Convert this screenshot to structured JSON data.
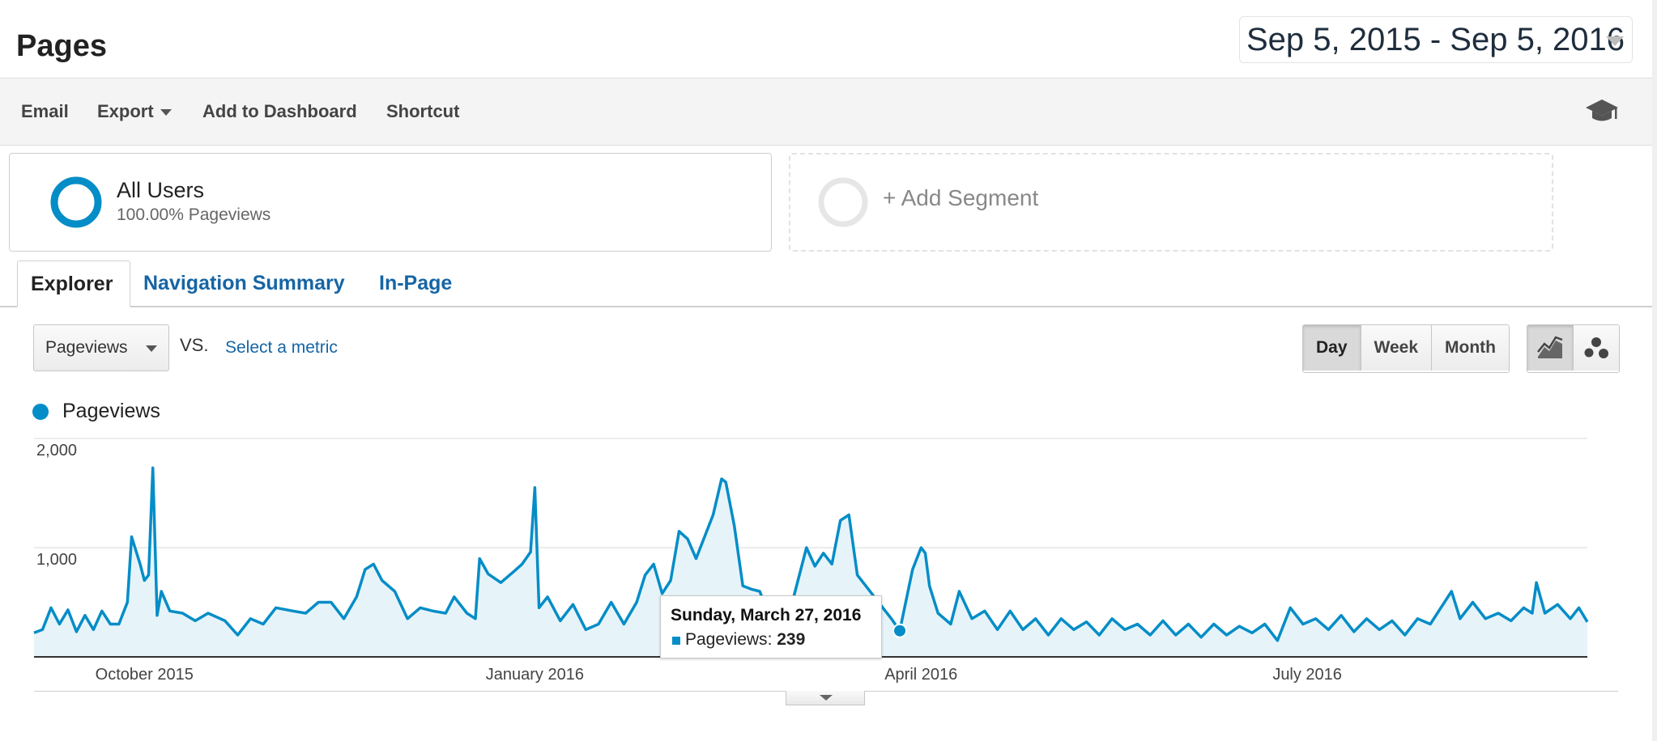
{
  "header": {
    "title": "Pages",
    "date_range": "Sep 5, 2015 - Sep 5, 2016"
  },
  "toolbar": {
    "email_label": "Email",
    "export_label": "Export",
    "add_dashboard_label": "Add to Dashboard",
    "shortcut_label": "Shortcut",
    "help_icon": "graduation-cap-icon"
  },
  "segments": {
    "all_users": {
      "name": "All Users",
      "sub": "100.00% Pageviews"
    },
    "add_segment_label": "+ Add Segment"
  },
  "tabs": [
    {
      "label": "Explorer",
      "active": true
    },
    {
      "label": "Navigation Summary",
      "active": false
    },
    {
      "label": "In-Page",
      "active": false
    }
  ],
  "controls": {
    "metric_value": "Pageviews",
    "vs_label": "VS.",
    "select_metric_label": "Select a metric",
    "period_options": [
      {
        "label": "Day",
        "active": true
      },
      {
        "label": "Week",
        "active": false
      },
      {
        "label": "Month",
        "active": false
      }
    ],
    "view_icons": [
      "line-chart-icon",
      "motion-chart-icon"
    ]
  },
  "colors": {
    "series": "#058dc7",
    "fill": "#e6f4fa",
    "link": "#1565a5"
  },
  "chart_data": {
    "type": "area",
    "title": "",
    "xlabel": "",
    "ylabel": "",
    "ylim": [
      0,
      2000
    ],
    "y_ticks": [
      {
        "label": "2,000",
        "value": 2000
      },
      {
        "label": "1,000",
        "value": 1000
      }
    ],
    "x_ticks": [
      {
        "label": "October 2015",
        "date": "2015-10-01"
      },
      {
        "label": "January 2016",
        "date": "2016-01-01"
      },
      {
        "label": "April 2016",
        "date": "2016-04-01"
      },
      {
        "label": "July 2016",
        "date": "2016-07-01"
      }
    ],
    "x_range": [
      "2015-09-05",
      "2016-09-05"
    ],
    "grid": true,
    "legend": "top-left",
    "series": [
      {
        "name": "Pageviews",
        "keypoints": [
          [
            "2015-09-05",
            220
          ],
          [
            "2015-09-07",
            250
          ],
          [
            "2015-09-09",
            450
          ],
          [
            "2015-09-11",
            300
          ],
          [
            "2015-09-13",
            430
          ],
          [
            "2015-09-15",
            230
          ],
          [
            "2015-09-17",
            380
          ],
          [
            "2015-09-19",
            250
          ],
          [
            "2015-09-21",
            420
          ],
          [
            "2015-09-23",
            300
          ],
          [
            "2015-09-25",
            300
          ],
          [
            "2015-09-27",
            500
          ],
          [
            "2015-09-28",
            1100
          ],
          [
            "2015-09-30",
            850
          ],
          [
            "2015-10-01",
            700
          ],
          [
            "2015-10-02",
            750
          ],
          [
            "2015-10-03",
            1730
          ],
          [
            "2015-10-04",
            380
          ],
          [
            "2015-10-05",
            600
          ],
          [
            "2015-10-07",
            420
          ],
          [
            "2015-10-10",
            400
          ],
          [
            "2015-10-13",
            330
          ],
          [
            "2015-10-16",
            400
          ],
          [
            "2015-10-20",
            330
          ],
          [
            "2015-10-23",
            200
          ],
          [
            "2015-10-26",
            350
          ],
          [
            "2015-10-29",
            300
          ],
          [
            "2015-11-01",
            450
          ],
          [
            "2015-11-05",
            420
          ],
          [
            "2015-11-08",
            400
          ],
          [
            "2015-11-11",
            500
          ],
          [
            "2015-11-14",
            500
          ],
          [
            "2015-11-17",
            350
          ],
          [
            "2015-11-20",
            550
          ],
          [
            "2015-11-22",
            800
          ],
          [
            "2015-11-24",
            850
          ],
          [
            "2015-11-26",
            700
          ],
          [
            "2015-11-29",
            600
          ],
          [
            "2015-12-02",
            350
          ],
          [
            "2015-12-05",
            450
          ],
          [
            "2015-12-08",
            420
          ],
          [
            "2015-12-11",
            400
          ],
          [
            "2015-12-13",
            550
          ],
          [
            "2015-12-16",
            400
          ],
          [
            "2015-12-18",
            350
          ],
          [
            "2015-12-19",
            900
          ],
          [
            "2015-12-21",
            760
          ],
          [
            "2015-12-24",
            680
          ],
          [
            "2015-12-27",
            780
          ],
          [
            "2015-12-29",
            850
          ],
          [
            "2015-12-31",
            960
          ],
          [
            "2016-01-01",
            1550
          ],
          [
            "2016-01-02",
            450
          ],
          [
            "2016-01-04",
            550
          ],
          [
            "2016-01-07",
            330
          ],
          [
            "2016-01-10",
            480
          ],
          [
            "2016-01-13",
            250
          ],
          [
            "2016-01-16",
            300
          ],
          [
            "2016-01-19",
            500
          ],
          [
            "2016-01-22",
            300
          ],
          [
            "2016-01-25",
            500
          ],
          [
            "2016-01-27",
            750
          ],
          [
            "2016-01-29",
            850
          ],
          [
            "2016-01-31",
            580
          ],
          [
            "2016-02-02",
            700
          ],
          [
            "2016-02-04",
            1150
          ],
          [
            "2016-02-06",
            1080
          ],
          [
            "2016-02-08",
            900
          ],
          [
            "2016-02-10",
            1100
          ],
          [
            "2016-02-12",
            1300
          ],
          [
            "2016-02-14",
            1630
          ],
          [
            "2016-02-15",
            1600
          ],
          [
            "2016-02-17",
            1200
          ],
          [
            "2016-02-19",
            650
          ],
          [
            "2016-02-21",
            620
          ],
          [
            "2016-02-23",
            600
          ],
          [
            "2016-02-25",
            400
          ],
          [
            "2016-02-27",
            550
          ],
          [
            "2016-03-01",
            400
          ],
          [
            "2016-03-03",
            700
          ],
          [
            "2016-03-05",
            1000
          ],
          [
            "2016-03-07",
            830
          ],
          [
            "2016-03-09",
            950
          ],
          [
            "2016-03-11",
            850
          ],
          [
            "2016-03-13",
            1250
          ],
          [
            "2016-03-15",
            1300
          ],
          [
            "2016-03-17",
            750
          ],
          [
            "2016-03-19",
            650
          ],
          [
            "2016-03-21",
            550
          ],
          [
            "2016-03-23",
            450
          ],
          [
            "2016-03-25",
            350
          ],
          [
            "2016-03-27",
            239
          ],
          [
            "2016-03-30",
            800
          ],
          [
            "2016-04-01",
            1000
          ],
          [
            "2016-04-02",
            950
          ],
          [
            "2016-04-03",
            650
          ],
          [
            "2016-04-05",
            400
          ],
          [
            "2016-04-08",
            300
          ],
          [
            "2016-04-10",
            600
          ],
          [
            "2016-04-13",
            350
          ],
          [
            "2016-04-16",
            420
          ],
          [
            "2016-04-19",
            250
          ],
          [
            "2016-04-22",
            420
          ],
          [
            "2016-04-25",
            250
          ],
          [
            "2016-04-28",
            350
          ],
          [
            "2016-05-01",
            200
          ],
          [
            "2016-05-04",
            350
          ],
          [
            "2016-05-07",
            250
          ],
          [
            "2016-05-10",
            320
          ],
          [
            "2016-05-13",
            200
          ],
          [
            "2016-05-16",
            350
          ],
          [
            "2016-05-19",
            250
          ],
          [
            "2016-05-22",
            300
          ],
          [
            "2016-05-25",
            200
          ],
          [
            "2016-05-28",
            330
          ],
          [
            "2016-05-31",
            200
          ],
          [
            "2016-06-03",
            300
          ],
          [
            "2016-06-06",
            180
          ],
          [
            "2016-06-09",
            300
          ],
          [
            "2016-06-12",
            200
          ],
          [
            "2016-06-15",
            280
          ],
          [
            "2016-06-18",
            220
          ],
          [
            "2016-06-21",
            300
          ],
          [
            "2016-06-24",
            150
          ],
          [
            "2016-06-27",
            450
          ],
          [
            "2016-06-30",
            300
          ],
          [
            "2016-07-03",
            350
          ],
          [
            "2016-07-06",
            250
          ],
          [
            "2016-07-09",
            380
          ],
          [
            "2016-07-12",
            230
          ],
          [
            "2016-07-15",
            350
          ],
          [
            "2016-07-18",
            250
          ],
          [
            "2016-07-21",
            330
          ],
          [
            "2016-07-24",
            200
          ],
          [
            "2016-07-27",
            350
          ],
          [
            "2016-07-30",
            300
          ],
          [
            "2016-08-02",
            480
          ],
          [
            "2016-08-04",
            600
          ],
          [
            "2016-08-06",
            350
          ],
          [
            "2016-08-09",
            500
          ],
          [
            "2016-08-12",
            350
          ],
          [
            "2016-08-15",
            400
          ],
          [
            "2016-08-18",
            330
          ],
          [
            "2016-08-21",
            450
          ],
          [
            "2016-08-23",
            400
          ],
          [
            "2016-08-24",
            680
          ],
          [
            "2016-08-26",
            400
          ],
          [
            "2016-08-29",
            480
          ],
          [
            "2016-09-01",
            350
          ],
          [
            "2016-09-03",
            450
          ],
          [
            "2016-09-05",
            320
          ]
        ]
      }
    ],
    "tooltip": {
      "date": "Sunday, March 27, 2016",
      "metric": "Pageviews",
      "value": "239",
      "point_date": "2016-03-27",
      "point_value": 239
    }
  }
}
